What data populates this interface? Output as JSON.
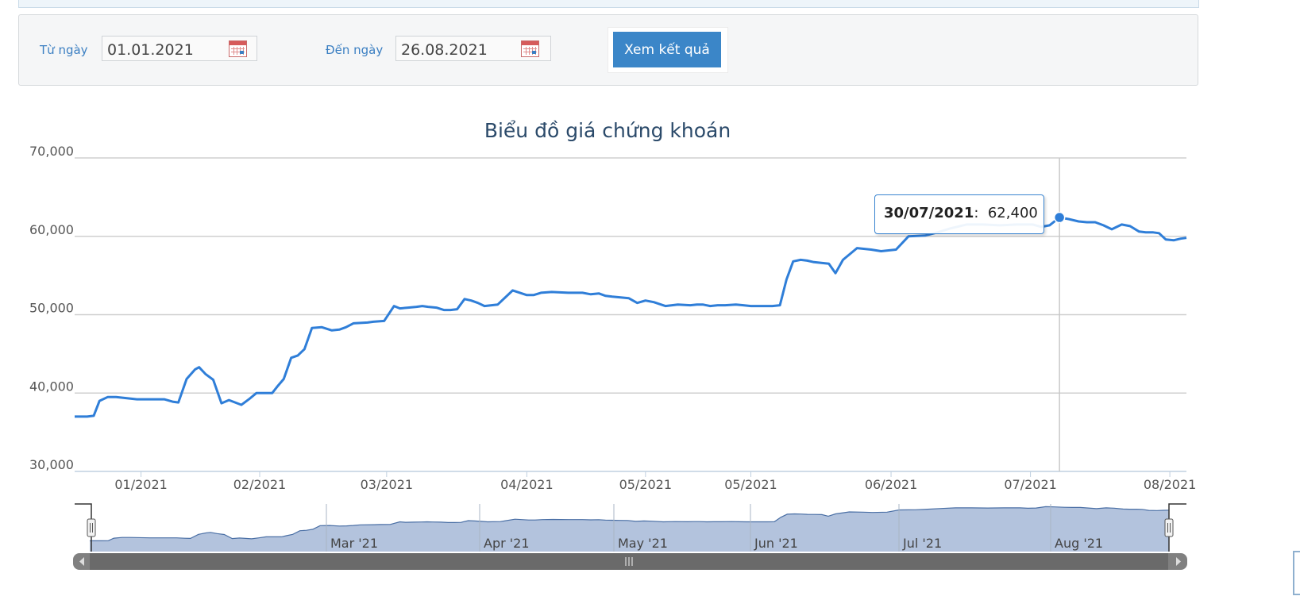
{
  "filter": {
    "from_label": "Từ ngày",
    "from_value": "01.01.2021",
    "to_label": "Đến ngày",
    "to_value": "26.08.2021",
    "submit_label": "Xem kết quả",
    "calendar_icon": "calendar-icon"
  },
  "colors": {
    "line": "#2f7ed8",
    "navigator_fill": "#b3c3dd",
    "navigator_line": "#4a6fa5",
    "button": "#3b86c8",
    "scrollbar": "#808080"
  },
  "tooltip": {
    "date": "30/07/2021",
    "value": "62,400"
  },
  "chart_data": {
    "type": "line",
    "title": "Biểu đồ giá chứng khoán",
    "ylim": [
      30000,
      70000
    ],
    "yticks": [
      30000,
      40000,
      50000,
      60000,
      70000
    ],
    "ytick_labels": [
      "30,000",
      "40,000",
      "50,000",
      "60,000",
      "70,000"
    ],
    "xlim": [
      0,
      1340
    ],
    "xtick_positions": [
      80,
      223,
      376,
      545,
      688,
      815,
      984,
      1152,
      1320
    ],
    "xtick_labels": [
      "01/2021",
      "02/2021",
      "03/2021",
      "04/2021",
      "05/2021",
      "05/2021",
      "06/2021",
      "07/2021",
      "08/2021"
    ],
    "grid": true,
    "series": [
      {
        "x": [
          0,
          15,
          23,
          30,
          40,
          50,
          75,
          84,
          100,
          108,
          118,
          125,
          135,
          145,
          150,
          158,
          167,
          177,
          186,
          201,
          210,
          219,
          227,
          238,
          244,
          252,
          261,
          269,
          277,
          286,
          298,
          310,
          319,
          327,
          336,
          353,
          360,
          373,
          385,
          392,
          402,
          412,
          419,
          426,
          436,
          445,
          453,
          461,
          470,
          478,
          486,
          494,
          510,
          528,
          545,
          553,
          562,
          575,
          595,
          603,
          612,
          622,
          632,
          640,
          648,
          658,
          668,
          678,
          688,
          698,
          712,
          727,
          742,
          750,
          757,
          766,
          775,
          784,
          797,
          806,
          815,
          824,
          832,
          841,
          850,
          858,
          866,
          875,
          883,
          891,
          900,
          909,
          917,
          926,
          943,
          960,
          972,
          990,
          1005,
          1025,
          1040,
          1055,
          1075,
          1095,
          1115,
          1135,
          1155,
          1165,
          1175,
          1187,
          1198,
          1210,
          1220,
          1230,
          1240,
          1250,
          1262,
          1272,
          1283,
          1291,
          1300,
          1307,
          1315,
          1325,
          1333,
          1340
        ],
        "y": [
          37000,
          37000,
          37100,
          39000,
          39500,
          39500,
          39200,
          39200,
          39200,
          39200,
          38900,
          38800,
          41800,
          43000,
          43300,
          42400,
          41700,
          38700,
          39100,
          38500,
          39200,
          40000,
          40000,
          40000,
          40800,
          41800,
          44500,
          44800,
          45600,
          48300,
          48400,
          48000,
          48100,
          48400,
          48900,
          49000,
          49100,
          49200,
          51100,
          50800,
          50900,
          51000,
          51100,
          51000,
          50900,
          50600,
          50600,
          50700,
          52000,
          51800,
          51500,
          51100,
          51300,
          53100,
          52500,
          52500,
          52800,
          52900,
          52800,
          52800,
          52800,
          52600,
          52700,
          52400,
          52300,
          52200,
          52100,
          51500,
          51800,
          51600,
          51100,
          51300,
          51200,
          51300,
          51300,
          51100,
          51200,
          51200,
          51300,
          51200,
          51100,
          51100,
          51100,
          51100,
          51200,
          54500,
          56800,
          57000,
          56900,
          56700,
          56600,
          56500,
          55300,
          57000,
          58500,
          58300,
          58100,
          58300,
          60000,
          60100,
          60500,
          61000,
          61500,
          61500,
          61400,
          61500,
          61500,
          61200,
          61400,
          62400,
          62200,
          61900,
          61800,
          61800,
          61400,
          60900,
          61500,
          61300,
          60600,
          60500,
          60500,
          60400,
          59600,
          59500,
          59700,
          59800
        ]
      }
    ],
    "highlight": {
      "x": 1187,
      "y": 62400
    },
    "navigator_labels": [
      "Mar '21",
      "Apr '21",
      "May '21",
      "Jun '21",
      "Jul '21",
      "Aug '21"
    ]
  }
}
